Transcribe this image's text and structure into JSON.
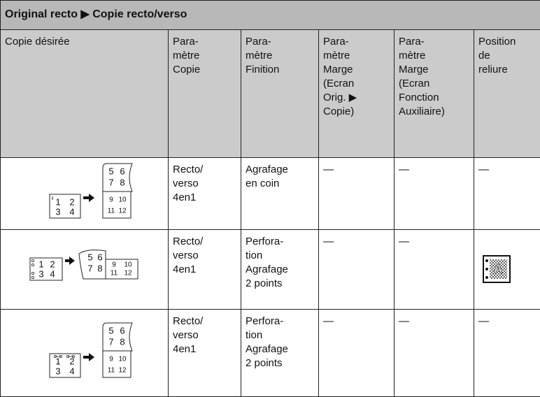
{
  "title": "Original recto ▶ Copie recto/verso",
  "header": [
    "Copie désirée",
    "Para-\nmètre\nCopie",
    "Para-\nmètre\nFinition",
    "Para-\nmètre\nMarge\n(Ecran\nOrig. ▶\nCopie)",
    "Para-\nmètre\nMarge\n(Ecran\nFonction\nAuxiliaire)",
    "Position\nde\nreliure"
  ],
  "rows": [
    {
      "original": [
        1,
        2,
        3,
        4
      ],
      "copy": [
        5,
        6,
        7,
        8,
        9,
        10,
        11,
        12
      ],
      "cells": [
        "Recto/\nverso\n4en1",
        "Agrafage\nen coin",
        "—",
        "—",
        "—"
      ]
    },
    {
      "original": [
        1,
        2,
        3,
        4
      ],
      "copy": [
        5,
        6,
        7,
        8,
        9,
        10,
        11,
        12
      ],
      "cells": [
        "Recto/\nverso\n4en1",
        "Perfora-\ntion\nAgrafage\n2 points",
        "—",
        "—"
      ],
      "icon": "A"
    },
    {
      "original": [
        1,
        2,
        3,
        4
      ],
      "copy": [
        5,
        6,
        7,
        8,
        9,
        10,
        11,
        12
      ],
      "cells": [
        "Recto/\nverso\n4en1",
        "Perfora-\ntion\nAgrafage\n2 points",
        "—",
        "—",
        "—"
      ]
    }
  ]
}
